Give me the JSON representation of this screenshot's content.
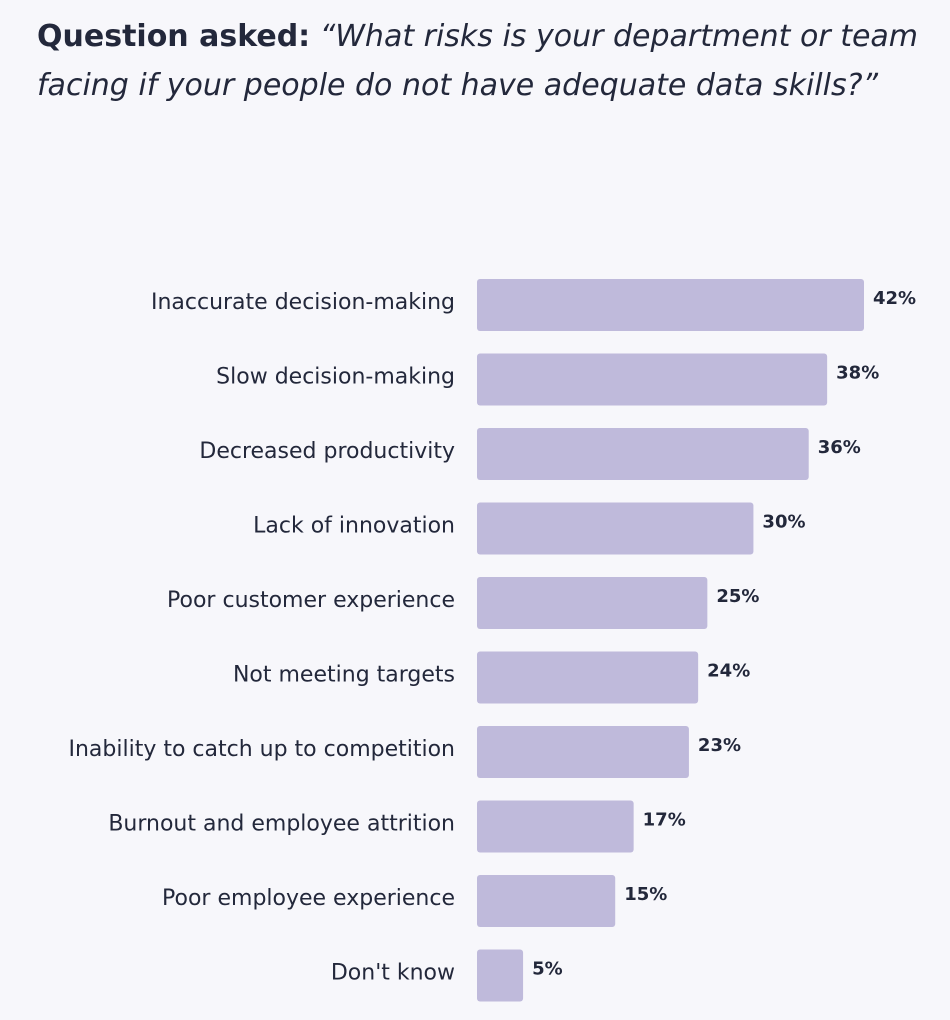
{
  "header": {
    "lead": "Question asked:",
    "question": "“What risks is your department or team facing if your people do not have adequate data skills?”"
  },
  "chart_data": {
    "type": "bar",
    "orientation": "horizontal",
    "categories": [
      "Inaccurate decision-making",
      "Slow decision-making",
      "Decreased productivity",
      "Lack of innovation",
      "Poor customer experience",
      "Not meeting targets",
      "Inability to catch up to competition",
      "Burnout and employee attrition",
      "Poor employee experience",
      "Don't know"
    ],
    "values": [
      42,
      38,
      36,
      30,
      25,
      24,
      23,
      17,
      15,
      5
    ],
    "value_labels": [
      "42%",
      "38%",
      "36%",
      "30%",
      "25%",
      "24%",
      "23%",
      "17%",
      "15%",
      "5%"
    ],
    "unit": "%",
    "bar_color": "#bfbadb",
    "grid": false,
    "legend": "none"
  }
}
